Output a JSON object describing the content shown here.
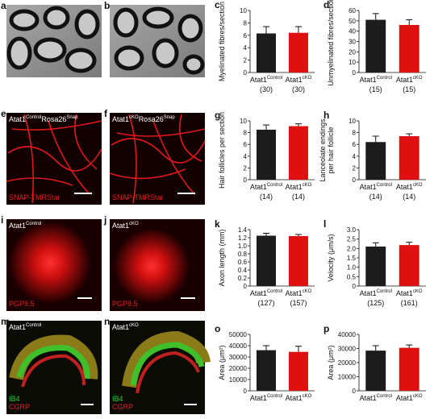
{
  "panels": [
    {
      "letter": "a"
    },
    {
      "letter": "b"
    },
    {
      "letter": "e",
      "label": [
        "Atat1",
        "Control",
        "Rosa26",
        "Snap"
      ],
      "stain": [
        "SNAP-TMRStar"
      ],
      "stain_colors": [
        "#e02020"
      ]
    },
    {
      "letter": "f",
      "label": [
        "Atat1",
        "cKO",
        "Rosa26",
        "Snap"
      ],
      "stain": [
        "SNAP-TMRStar"
      ],
      "stain_colors": [
        "#e02020"
      ]
    },
    {
      "letter": "i",
      "label": [
        "Atat1",
        "Control"
      ],
      "stain": [
        "PGP9.5"
      ],
      "stain_colors": [
        "#e02020"
      ]
    },
    {
      "letter": "j",
      "label": [
        "Atat1",
        "cKO"
      ],
      "stain": [
        "PGP9.5"
      ],
      "stain_colors": [
        "#e02020"
      ]
    },
    {
      "letter": "m",
      "label": [
        "Atat1",
        "Control"
      ],
      "stain": [
        "IB4",
        "CGRP"
      ],
      "stain_colors": [
        "#33cc33",
        "#e02020"
      ]
    },
    {
      "letter": "n",
      "label": [
        "Atat1",
        "cKO"
      ],
      "stain": [
        "IB4",
        "CGRP"
      ],
      "stain_colors": [
        "#33cc33",
        "#e02020"
      ]
    }
  ],
  "chart_data": [
    {
      "type": "bar",
      "panel": "c",
      "ylabel": "Myelinated fibres/section",
      "categories": [
        "Atat1",
        "Atat1"
      ],
      "category_sup": [
        "Control",
        "cKO"
      ],
      "n_labels": [
        "(30)",
        "(30)"
      ],
      "values": [
        6.3,
        6.4
      ],
      "errors": [
        1.1,
        1.0
      ],
      "colors": [
        "#1c1c1c",
        "#e01010"
      ],
      "ylim": [
        0,
        10
      ],
      "yticks": [
        0,
        2,
        4,
        6,
        8,
        10
      ]
    },
    {
      "type": "bar",
      "panel": "d",
      "ylabel": "Unmyelinated fibres/section",
      "categories": [
        "Atat1",
        "Atat1"
      ],
      "category_sup": [
        "Control",
        "cKO"
      ],
      "n_labels": [
        "(15)",
        "(15)"
      ],
      "values": [
        51,
        46
      ],
      "errors": [
        6,
        5
      ],
      "colors": [
        "#1c1c1c",
        "#e01010"
      ],
      "ylim": [
        0,
        60
      ],
      "yticks": [
        0,
        10,
        20,
        30,
        40,
        50,
        60
      ]
    },
    {
      "type": "bar",
      "panel": "g",
      "ylabel": "Hair follicles per section",
      "categories": [
        "Atat1",
        "Atat1"
      ],
      "category_sup": [
        "Control",
        "cKO"
      ],
      "n_labels": [
        "(14)",
        "(14)"
      ],
      "values": [
        8.5,
        9.1
      ],
      "errors": [
        0.8,
        0.4
      ],
      "colors": [
        "#1c1c1c",
        "#e01010"
      ],
      "ylim": [
        0,
        10
      ],
      "yticks": [
        0,
        2,
        4,
        6,
        8,
        10
      ]
    },
    {
      "type": "bar",
      "panel": "h",
      "ylabel": [
        "Lanceolate endings",
        "per hair follicle"
      ],
      "categories": [
        "Atat1",
        "Atat1"
      ],
      "category_sup": [
        "Control",
        "cKO"
      ],
      "n_labels": [
        "(14)",
        "(14)"
      ],
      "values": [
        6.4,
        7.4
      ],
      "errors": [
        1.0,
        0.4
      ],
      "colors": [
        "#1c1c1c",
        "#e01010"
      ],
      "ylim": [
        0,
        10
      ],
      "yticks": [
        0,
        2,
        4,
        6,
        8,
        10
      ]
    },
    {
      "type": "bar",
      "panel": "k",
      "ylabel": "Axon length (mm)",
      "categories": [
        "Atat1",
        "Atat1"
      ],
      "category_sup": [
        "Control",
        "cKO"
      ],
      "n_labels": [
        "(127)",
        "(157)"
      ],
      "values": [
        1.25,
        1.24
      ],
      "errors": [
        0.06,
        0.04
      ],
      "colors": [
        "#1c1c1c",
        "#e01010"
      ],
      "ylim": [
        0,
        1.4
      ],
      "yticks": [
        0,
        0.2,
        0.4,
        0.6,
        0.8,
        {
          "value": 1,
          "label": "1.0"
        },
        1.2,
        1.4
      ]
    },
    {
      "type": "bar",
      "panel": "l",
      "ylabel": "Velocity (μm/s)",
      "categories": [
        "Atat1",
        "Atat1"
      ],
      "category_sup": [
        "Control",
        "cKO"
      ],
      "n_labels": [
        "(125)",
        "(161)"
      ],
      "values": [
        2.1,
        2.18
      ],
      "errors": [
        0.2,
        0.15
      ],
      "colors": [
        "#1c1c1c",
        "#e01010"
      ],
      "ylim": [
        0,
        3
      ],
      "yticks": [
        0,
        0.5,
        {
          "value": 1,
          "label": "1.0"
        },
        1.5,
        {
          "value": 2,
          "label": "2.0"
        },
        2.5,
        {
          "value": 3,
          "label": "3.0"
        }
      ]
    },
    {
      "type": "bar",
      "panel": "o",
      "ylabel": "Area (μm²)",
      "categories": [
        "Atat1",
        "Atat1"
      ],
      "category_sup": [
        "Control",
        "cKO"
      ],
      "values": [
        36000,
        34500
      ],
      "errors": [
        4000,
        5000
      ],
      "colors": [
        "#1c1c1c",
        "#e01010"
      ],
      "ylim": [
        0,
        50000
      ],
      "yticks": [
        0,
        10000,
        20000,
        30000,
        40000,
        50000
      ]
    },
    {
      "type": "bar",
      "panel": "p",
      "ylabel": "Area (μm²)",
      "categories": [
        "Atat1",
        "Atat1"
      ],
      "category_sup": [
        "Control",
        "cKO"
      ],
      "values": [
        28500,
        30500
      ],
      "errors": [
        3500,
        2000
      ],
      "colors": [
        "#1c1c1c",
        "#e01010"
      ],
      "ylim": [
        0,
        40000
      ],
      "yticks": [
        0,
        10000,
        20000,
        30000,
        40000
      ]
    }
  ]
}
